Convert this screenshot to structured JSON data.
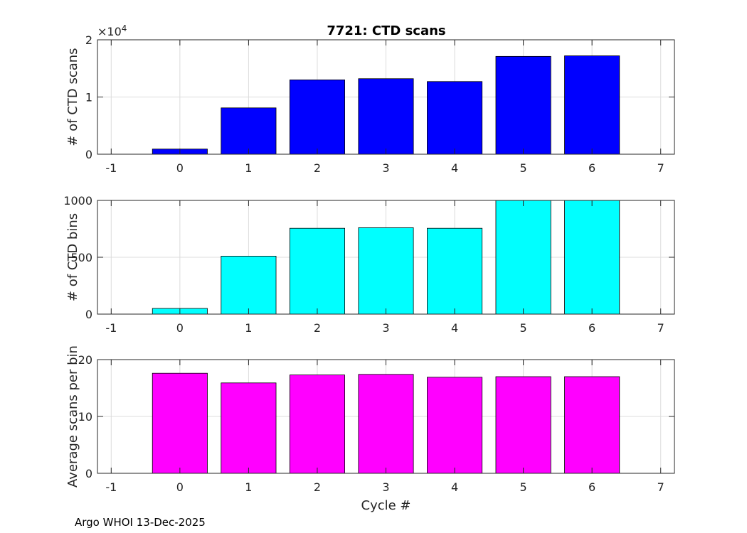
{
  "title": "7721: CTD scans",
  "footer": "Argo WHOI 13-Dec-2025",
  "chart_data": [
    {
      "type": "bar",
      "title": "7721: CTD scans",
      "xlabel": "",
      "ylabel": "# of CTD scans",
      "exponent_label": "×10",
      "exponent_power": "4",
      "x_tick_labels": [
        "-1",
        "0",
        "1",
        "2",
        "3",
        "4",
        "5",
        "6",
        "7"
      ],
      "y_tick_labels": [
        "0",
        "1",
        "2"
      ],
      "xlim": [
        -1.2,
        7.2
      ],
      "ylim": [
        0,
        20000
      ],
      "grid": true,
      "color": "#0000ff",
      "categories": [
        0,
        1,
        2,
        3,
        4,
        5,
        6
      ],
      "values": [
        900,
        8100,
        13000,
        13200,
        12700,
        17100,
        17200
      ]
    },
    {
      "type": "bar",
      "xlabel": "",
      "ylabel": "# of CTD bins",
      "x_tick_labels": [
        "-1",
        "0",
        "1",
        "2",
        "3",
        "4",
        "5",
        "6",
        "7"
      ],
      "y_tick_labels": [
        "0",
        "500",
        "1000"
      ],
      "xlim": [
        -1.2,
        7.2
      ],
      "ylim": [
        0,
        1000
      ],
      "grid": true,
      "color": "#00ffff",
      "categories": [
        0,
        1,
        2,
        3,
        4,
        5,
        6
      ],
      "values": [
        50,
        510,
        755,
        760,
        755,
        1000,
        1000
      ]
    },
    {
      "type": "bar",
      "xlabel": "Cycle #",
      "ylabel": "Average scans per bin",
      "x_tick_labels": [
        "-1",
        "0",
        "1",
        "2",
        "3",
        "4",
        "5",
        "6",
        "7"
      ],
      "y_tick_labels": [
        "0",
        "10",
        "20"
      ],
      "xlim": [
        -1.2,
        7.2
      ],
      "ylim": [
        0,
        20
      ],
      "grid": true,
      "color": "#ff00ff",
      "categories": [
        0,
        1,
        2,
        3,
        4,
        5,
        6
      ],
      "values": [
        17.6,
        15.9,
        17.3,
        17.4,
        16.9,
        17.0,
        17.0
      ]
    }
  ]
}
